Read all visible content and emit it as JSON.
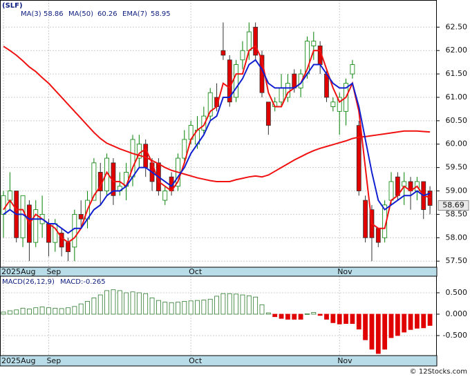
{
  "chart_data": [
    {
      "type": "candlestick",
      "title": "(SLF)",
      "categories": [
        "2025Aug",
        null,
        null,
        null,
        null,
        null,
        null,
        "Sep",
        null,
        null,
        null,
        null,
        null,
        null,
        null,
        null,
        null,
        null,
        null,
        null,
        null,
        null,
        null,
        null,
        null,
        null,
        null,
        null,
        null,
        "Oct",
        null,
        null,
        null,
        null,
        null,
        null,
        null,
        null,
        null,
        null,
        null,
        null,
        null,
        null,
        null,
        null,
        null,
        null,
        null,
        null,
        null,
        null,
        "Nov",
        null,
        null,
        null,
        null,
        null,
        null,
        null,
        null,
        null,
        null,
        null,
        null,
        null,
        null
      ],
      "open": [
        58.5,
        58.8,
        59.0,
        58.0,
        58.7,
        57.9,
        58.3,
        58.3,
        57.9,
        58.1,
        57.9,
        57.8,
        58.5,
        58.4,
        58.8,
        59.4,
        59.0,
        59.6,
        59.0,
        59.1,
        59.3,
        59.7,
        60.0,
        59.6,
        59.6,
        58.8,
        59.3,
        59.1,
        59.7,
        60.1,
        60.0,
        60.3,
        60.6,
        61.0,
        62.0,
        61.8,
        61.0,
        61.8,
        62.0,
        62.5,
        61.9,
        60.9,
        60.8,
        60.9,
        61.0,
        61.5,
        61.2,
        61.5,
        62.1,
        62.1,
        61.5,
        60.8,
        60.7,
        60.7,
        61.5,
        60.4,
        58.8,
        58.6,
        58.2,
        58.0,
        58.8,
        59.3,
        59.1,
        59.2,
        59.0,
        59.2,
        59.0
      ],
      "high": [
        59.0,
        59.4,
        59.0,
        58.9,
        58.8,
        58.8,
        58.9,
        58.4,
        58.4,
        58.2,
        58.0,
        58.6,
        58.8,
        59.0,
        59.7,
        59.6,
        59.8,
        59.7,
        59.4,
        59.6,
        60.2,
        60.2,
        60.1,
        59.7,
        59.7,
        59.1,
        59.4,
        59.8,
        60.3,
        60.5,
        60.6,
        60.8,
        61.2,
        61.3,
        62.6,
        61.9,
        61.8,
        62.2,
        62.6,
        62.6,
        62.0,
        60.9,
        61.0,
        61.5,
        61.5,
        61.6,
        61.6,
        62.3,
        62.4,
        62.2,
        61.6,
        61.0,
        61.1,
        61.4,
        61.8,
        60.5,
        58.9,
        58.7,
        58.2,
        58.8,
        59.4,
        59.4,
        59.4,
        59.3,
        59.3,
        59.2,
        59.1
      ],
      "low": [
        58.0,
        58.6,
        57.9,
        57.8,
        57.5,
        57.8,
        58.0,
        57.6,
        57.7,
        57.6,
        57.5,
        57.5,
        58.2,
        58.2,
        58.8,
        58.7,
        58.9,
        58.7,
        58.9,
        58.8,
        59.1,
        59.5,
        59.3,
        59.0,
        58.9,
        58.7,
        58.9,
        59.0,
        59.6,
        60.0,
        59.9,
        60.2,
        60.5,
        60.7,
        61.8,
        60.8,
        60.9,
        61.6,
        61.8,
        61.8,
        61.0,
        60.2,
        60.7,
        60.8,
        60.9,
        61.1,
        61.0,
        61.4,
        61.8,
        61.5,
        60.9,
        60.7,
        60.2,
        60.4,
        61.4,
        58.9,
        57.9,
        57.5,
        57.8,
        57.9,
        58.7,
        58.8,
        58.7,
        58.6,
        58.8,
        58.4,
        58.5
      ],
      "close": [
        58.9,
        59.0,
        58.0,
        58.9,
        57.9,
        58.6,
        58.5,
        57.9,
        58.3,
        57.8,
        57.7,
        58.5,
        58.4,
        58.8,
        59.6,
        59.0,
        59.7,
        58.9,
        59.1,
        59.4,
        60.1,
        60.0,
        59.5,
        59.2,
        59.0,
        59.0,
        59.0,
        59.7,
        60.1,
        60.4,
        60.3,
        60.6,
        61.1,
        60.8,
        61.9,
        60.9,
        61.7,
        62.0,
        62.4,
        61.9,
        61.1,
        60.4,
        60.9,
        61.2,
        61.3,
        61.2,
        61.5,
        62.2,
        62.2,
        61.7,
        61.0,
        60.9,
        61.0,
        61.3,
        61.7,
        59.0,
        58.0,
        58.0,
        57.9,
        58.7,
        59.2,
        58.9,
        59.2,
        59.0,
        59.2,
        58.6,
        58.69
      ],
      "up_color": "#008000",
      "down_color": "#e00000",
      "series": [
        {
          "name": "MA(3)",
          "color": "#f01010",
          "values": [
            58.6,
            58.8,
            58.6,
            58.6,
            58.3,
            58.5,
            58.4,
            58.3,
            58.2,
            58.0,
            57.9,
            58.0,
            58.2,
            58.6,
            58.9,
            59.1,
            59.4,
            59.2,
            59.2,
            59.1,
            59.5,
            59.8,
            59.9,
            59.6,
            59.2,
            59.1,
            59.0,
            59.2,
            59.6,
            60.1,
            60.3,
            60.4,
            60.7,
            60.8,
            61.3,
            61.2,
            61.5,
            61.5,
            62.0,
            62.1,
            61.8,
            61.1,
            60.8,
            60.8,
            61.1,
            61.2,
            61.3,
            61.6,
            62.0,
            62.0,
            61.6,
            61.2,
            60.9,
            61.0,
            61.3,
            60.7,
            59.5,
            58.3,
            58.2,
            58.2,
            58.8,
            58.9,
            59.1,
            59.0,
            59.1,
            58.9,
            58.86
          ]
        },
        {
          "name": "MA(50)",
          "color": "#f01010",
          "values": [
            62.09,
            62.0,
            61.9,
            61.78,
            61.65,
            61.55,
            61.42,
            61.3,
            61.15,
            61.0,
            60.85,
            60.7,
            60.55,
            60.4,
            60.25,
            60.12,
            60.02,
            59.96,
            59.9,
            59.85,
            59.8,
            59.76,
            59.72,
            59.65,
            59.58,
            59.5,
            59.44,
            59.4,
            59.36,
            59.32,
            59.28,
            59.25,
            59.22,
            59.2,
            59.2,
            59.2,
            59.24,
            59.27,
            59.3,
            59.32,
            59.3,
            59.34,
            59.42,
            59.5,
            59.58,
            59.66,
            59.73,
            59.8,
            59.86,
            59.91,
            59.95,
            59.99,
            60.03,
            60.07,
            60.12,
            60.15,
            60.16,
            60.18,
            60.2,
            60.22,
            60.24,
            60.26,
            60.28,
            60.28,
            60.28,
            60.27,
            60.26
          ]
        },
        {
          "name": "EMA(7)",
          "color": "#1020d0",
          "values": [
            58.5,
            58.6,
            58.5,
            58.5,
            58.4,
            58.4,
            58.4,
            58.3,
            58.3,
            58.2,
            58.1,
            58.2,
            58.2,
            58.4,
            58.6,
            58.7,
            58.9,
            59.0,
            59.0,
            59.1,
            59.3,
            59.5,
            59.5,
            59.4,
            59.3,
            59.2,
            59.1,
            59.3,
            59.5,
            59.8,
            60.0,
            60.2,
            60.5,
            60.6,
            61.0,
            61.0,
            61.2,
            61.4,
            61.7,
            61.8,
            61.6,
            61.3,
            61.2,
            61.2,
            61.2,
            61.2,
            61.3,
            61.5,
            61.7,
            61.7,
            61.5,
            61.3,
            61.2,
            61.2,
            61.3,
            60.8,
            60.1,
            59.4,
            58.8,
            58.6,
            58.7,
            58.8,
            58.9,
            58.9,
            59.0,
            58.9,
            58.95
          ]
        }
      ],
      "ylim": [
        57.37,
        63.08
      ],
      "yticks": [
        {
          "value": 57.5,
          "label": "57.50"
        },
        {
          "value": 58,
          "label": "58.00"
        },
        {
          "value": 58.5,
          "label": "58.50"
        },
        {
          "value": 59,
          "label": "59.00"
        },
        {
          "value": 59.5,
          "label": "59.50"
        },
        {
          "value": 60,
          "label": "60.00"
        },
        {
          "value": 60.5,
          "label": "60.50"
        },
        {
          "value": 61,
          "label": "61.00"
        },
        {
          "value": 61.5,
          "label": "61.50"
        },
        {
          "value": 62,
          "label": "62.00"
        },
        {
          "value": 62.5,
          "label": "62.50"
        }
      ],
      "grid": true
    },
    {
      "type": "bar",
      "title": "MACD(26,12,9)",
      "label": "MACD:",
      "categories": [
        "2025Aug",
        null,
        null,
        null,
        null,
        null,
        null,
        "Sep",
        null,
        null,
        null,
        null,
        null,
        null,
        null,
        null,
        null,
        null,
        null,
        null,
        null,
        null,
        null,
        null,
        null,
        null,
        null,
        null,
        null,
        "Oct",
        null,
        null,
        null,
        null,
        null,
        null,
        null,
        null,
        null,
        null,
        null,
        null,
        null,
        null,
        null,
        null,
        null,
        null,
        null,
        null,
        null,
        null,
        "Nov",
        null,
        null,
        null,
        null,
        null,
        null,
        null,
        null,
        null,
        null,
        null,
        null,
        null,
        null
      ],
      "values": [
        0.05,
        0.08,
        0.1,
        0.14,
        0.12,
        0.15,
        0.17,
        0.15,
        0.14,
        0.13,
        0.15,
        0.18,
        0.24,
        0.3,
        0.38,
        0.45,
        0.55,
        0.57,
        0.55,
        0.5,
        0.52,
        0.5,
        0.48,
        0.38,
        0.32,
        0.28,
        0.27,
        0.28,
        0.3,
        0.31,
        0.32,
        0.33,
        0.35,
        0.42,
        0.48,
        0.48,
        0.47,
        0.45,
        0.43,
        0.4,
        0.22,
        0.03,
        -0.06,
        -0.1,
        -0.12,
        -0.12,
        -0.12,
        0.01,
        0.04,
        -0.03,
        -0.12,
        -0.2,
        -0.23,
        -0.22,
        -0.22,
        -0.35,
        -0.6,
        -0.82,
        -0.92,
        -0.82,
        -0.55,
        -0.5,
        -0.42,
        -0.36,
        -0.33,
        -0.32,
        -0.265
      ],
      "up_color": "#2a7a2a",
      "down_color": "#e00000",
      "ylim": [
        -0.968,
        0.887
      ],
      "yticks": [
        {
          "value": -0.5,
          "label": "-0.500"
        },
        {
          "value": 0,
          "label": "0.000"
        },
        {
          "value": 0.5,
          "label": "0.500"
        }
      ],
      "grid": true
    }
  ],
  "watermark": "© 12Stocks.com"
}
